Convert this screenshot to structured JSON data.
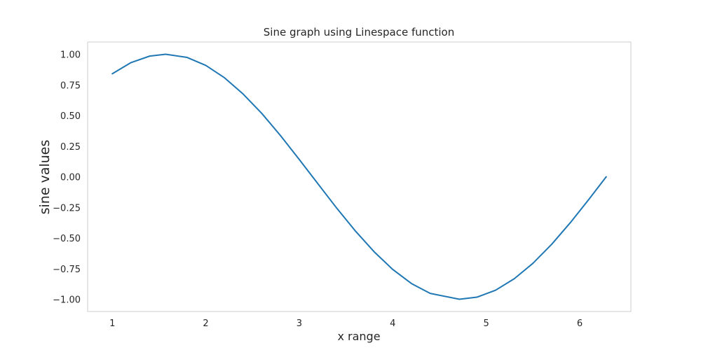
{
  "chart_data": {
    "type": "line",
    "title": "Sine graph using Linespace function",
    "xlabel": "x range",
    "ylabel": "sine values",
    "xlim": [
      0.736,
      6.547
    ],
    "ylim": [
      -1.1,
      1.1
    ],
    "x_ticks": [
      1,
      2,
      3,
      4,
      5,
      6
    ],
    "x_tick_labels": [
      "1",
      "2",
      "3",
      "4",
      "5",
      "6"
    ],
    "y_ticks": [
      1.0,
      0.75,
      0.5,
      0.25,
      0.0,
      -0.25,
      -0.5,
      -0.75,
      -1.0
    ],
    "y_tick_labels": [
      "1.00",
      "0.75",
      "0.50",
      "0.25",
      "0.00",
      "−0.25",
      "−0.50",
      "−0.75",
      "−1.00"
    ],
    "grid": false,
    "color": "#1f77b4",
    "series": [
      {
        "x": [
          1.0,
          1.2,
          1.4,
          1.5708,
          1.8,
          2.0,
          2.2,
          2.4,
          2.6,
          2.8,
          3.0,
          3.1416,
          3.4,
          3.6,
          3.8,
          4.0,
          4.2,
          4.4,
          4.7124,
          4.9,
          5.1,
          5.3,
          5.5,
          5.7,
          5.9,
          6.1,
          6.2832
        ],
        "y": [
          0.841,
          0.932,
          0.985,
          1.0,
          0.974,
          0.909,
          0.808,
          0.675,
          0.516,
          0.335,
          0.141,
          0.0,
          -0.256,
          -0.443,
          -0.612,
          -0.757,
          -0.872,
          -0.952,
          -1.0,
          -0.983,
          -0.926,
          -0.832,
          -0.706,
          -0.551,
          -0.374,
          -0.182,
          0.0
        ]
      }
    ]
  }
}
